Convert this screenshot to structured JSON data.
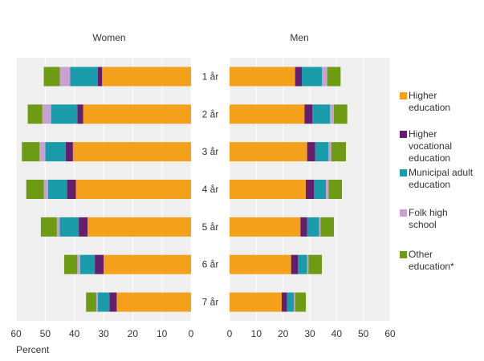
{
  "chart_data": {
    "type": "bar",
    "orientation": "horizontal",
    "stacked": true,
    "layout": "butterfly",
    "xlabel": "Percent",
    "categories": [
      "1 år",
      "2 år",
      "3 år",
      "4 år",
      "5 år",
      "6 år",
      "7 år"
    ],
    "xlim": [
      0,
      60
    ],
    "xticks": [
      0,
      10,
      20,
      30,
      40,
      50,
      60
    ],
    "grid": true,
    "legend_position": "right",
    "panels": [
      {
        "title": "Women",
        "direction": "reversed",
        "series": [
          {
            "name": "Higher education",
            "color": "#F5A01A",
            "values": [
              30.5,
              37,
              40.5,
              39.5,
              35.5,
              30,
              25.5
            ]
          },
          {
            "name": "Higher vocational education",
            "color": "#641E6E",
            "values": [
              1.5,
              2,
              2.5,
              3,
              3,
              3,
              2.5
            ]
          },
          {
            "name": "Municipal adult education",
            "color": "#1A9BAA",
            "values": [
              9.5,
              9,
              7,
              6.5,
              6.5,
              5,
              4
            ]
          },
          {
            "name": "Folk high school",
            "color": "#C8A0D2",
            "values": [
              3.5,
              3,
              2,
              1.5,
              1,
              1,
              0.5
            ]
          },
          {
            "name": "Other education*",
            "color": "#6E9B14",
            "values": [
              5.5,
              5,
              6,
              6,
              5.5,
              4.5,
              3.5
            ]
          }
        ]
      },
      {
        "title": "Men",
        "direction": "normal",
        "series": [
          {
            "name": "Higher education",
            "color": "#F5A01A",
            "values": [
              24.5,
              28,
              29,
              28.5,
              26.5,
              23,
              19.5
            ]
          },
          {
            "name": "Higher vocational education",
            "color": "#641E6E",
            "values": [
              2.5,
              3,
              3,
              3,
              2.5,
              2.5,
              2
            ]
          },
          {
            "name": "Municipal adult education",
            "color": "#1A9BAA",
            "values": [
              7.5,
              6.5,
              5,
              4.5,
              4.5,
              3.5,
              2.5
            ]
          },
          {
            "name": "Folk high school",
            "color": "#C8A0D2",
            "values": [
              2,
              1.5,
              1,
              1,
              0.5,
              0.5,
              0.5
            ]
          },
          {
            "name": "Other education*",
            "color": "#6E9B14",
            "values": [
              5,
              5,
              5.5,
              5,
              5,
              5,
              4
            ]
          }
        ]
      }
    ],
    "legend": [
      {
        "label": "Higher education",
        "color": "#F5A01A"
      },
      {
        "label": "Higher vocational education",
        "color": "#641E6E"
      },
      {
        "label": "Municipal adult education",
        "color": "#1A9BAA"
      },
      {
        "label": "Folk high school",
        "color": "#C8A0D2"
      },
      {
        "label": "Other education*",
        "color": "#6E9B14"
      }
    ]
  }
}
